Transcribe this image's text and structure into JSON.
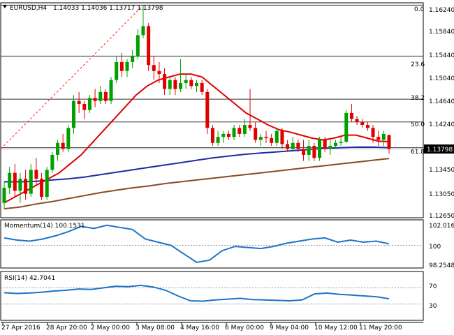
{
  "header": {
    "dropdown_icon": "triangle-down-icon",
    "symbol_timeframe": "EURUSD,H4",
    "ohlc": "1.14033 1.14036 1.13717 1.13798"
  },
  "colors": {
    "bull": "#00a000",
    "bear": "#e00000",
    "sma_fast": "#e00000",
    "sma_mid": "#1f2aa8",
    "sma_slow": "#8b4a24",
    "fib_level": "#333333",
    "fib_trend": "#ff2020",
    "indicator_line": "#1e73c8",
    "price_tag_bg": "#000000"
  },
  "fib_labels": [
    "0.0",
    "23.6",
    "38.2",
    "50.0",
    "61.8"
  ],
  "main_axis": {
    "ticks": [
      "1.16240",
      "1.15840",
      "1.15440",
      "1.15040",
      "1.14640",
      "1.14240",
      "1.13840",
      "1.13450",
      "1.13050",
      "1.12650"
    ],
    "current_price": "1.13798"
  },
  "momentum": {
    "title": "Momentum(14) 100.1531",
    "ticks": [
      "102.0164",
      "100",
      "98.2548"
    ]
  },
  "rsi": {
    "title": "RSI(14) 42.7041",
    "ticks": [
      "70",
      "30"
    ]
  },
  "time_axis": [
    "27 Apr 2016",
    "28 Apr 20:00",
    "2 May 00:00",
    "3 May 08:00",
    "4 May 16:00",
    "6 May 00:00",
    "9 May 04:00",
    "10 May 12:00",
    "11 May 20:00"
  ],
  "chart_data": {
    "type": "candlestick",
    "title": "EURUSD,H4",
    "ylim": [
      1.1265,
      1.1624
    ],
    "candles": [
      [
        1.129,
        1.1325,
        1.128,
        1.1315
      ],
      [
        1.1315,
        1.135,
        1.1305,
        1.134
      ],
      [
        1.134,
        1.1355,
        1.13,
        1.131
      ],
      [
        1.131,
        1.134,
        1.129,
        1.133
      ],
      [
        1.133,
        1.1345,
        1.1295,
        1.1305
      ],
      [
        1.1305,
        1.1355,
        1.13,
        1.1345
      ],
      [
        1.1345,
        1.1365,
        1.132,
        1.133
      ],
      [
        1.133,
        1.134,
        1.1295,
        1.13
      ],
      [
        1.13,
        1.135,
        1.1295,
        1.1345
      ],
      [
        1.1345,
        1.1375,
        1.134,
        1.137
      ],
      [
        1.137,
        1.1395,
        1.136,
        1.139
      ],
      [
        1.139,
        1.1405,
        1.1375,
        1.138
      ],
      [
        1.138,
        1.142,
        1.1375,
        1.1415
      ],
      [
        1.1415,
        1.147,
        1.1405,
        1.146
      ],
      [
        1.146,
        1.1475,
        1.144,
        1.1455
      ],
      [
        1.1455,
        1.146,
        1.143,
        1.1445
      ],
      [
        1.1445,
        1.147,
        1.144,
        1.1465
      ],
      [
        1.1465,
        1.148,
        1.145,
        1.146
      ],
      [
        1.146,
        1.1485,
        1.1455,
        1.1475
      ],
      [
        1.1475,
        1.148,
        1.1455,
        1.146
      ],
      [
        1.146,
        1.15,
        1.1455,
        1.1495
      ],
      [
        1.1495,
        1.1535,
        1.149,
        1.1525
      ],
      [
        1.1525,
        1.154,
        1.15,
        1.151
      ],
      [
        1.151,
        1.153,
        1.15,
        1.1525
      ],
      [
        1.1525,
        1.1545,
        1.1515,
        1.1535
      ],
      [
        1.1535,
        1.158,
        1.153,
        1.157
      ],
      [
        1.157,
        1.162,
        1.1565,
        1.1585
      ],
      [
        1.1585,
        1.159,
        1.151,
        1.152
      ],
      [
        1.152,
        1.1535,
        1.1495,
        1.151
      ],
      [
        1.151,
        1.1525,
        1.149,
        1.1505
      ],
      [
        1.1505,
        1.1515,
        1.147,
        1.148
      ],
      [
        1.148,
        1.15,
        1.147,
        1.1495
      ],
      [
        1.1495,
        1.15,
        1.147,
        1.148
      ],
      [
        1.148,
        1.153,
        1.1475,
        1.149
      ],
      [
        1.149,
        1.1505,
        1.148,
        1.1495
      ],
      [
        1.1495,
        1.15,
        1.148,
        1.1485
      ],
      [
        1.1485,
        1.1495,
        1.1475,
        1.149
      ],
      [
        1.149,
        1.1495,
        1.147,
        1.1475
      ],
      [
        1.1475,
        1.148,
        1.1405,
        1.1415
      ],
      [
        1.1415,
        1.142,
        1.1385,
        1.139
      ],
      [
        1.139,
        1.141,
        1.1385,
        1.14
      ],
      [
        1.14,
        1.141,
        1.139,
        1.1405
      ],
      [
        1.1405,
        1.141,
        1.1395,
        1.14
      ],
      [
        1.14,
        1.142,
        1.1395,
        1.1415
      ],
      [
        1.1415,
        1.142,
        1.14,
        1.1405
      ],
      [
        1.1405,
        1.143,
        1.14,
        1.142
      ],
      [
        1.142,
        1.148,
        1.141,
        1.1415
      ],
      [
        1.1415,
        1.1425,
        1.139,
        1.1395
      ],
      [
        1.1395,
        1.1405,
        1.1385,
        1.14
      ],
      [
        1.14,
        1.141,
        1.139,
        1.1398
      ],
      [
        1.1398,
        1.1405,
        1.1385,
        1.139
      ],
      [
        1.139,
        1.1415,
        1.1385,
        1.141
      ],
      [
        1.141,
        1.1415,
        1.138,
        1.1388
      ],
      [
        1.1388,
        1.1395,
        1.1375,
        1.138
      ],
      [
        1.138,
        1.14,
        1.1375,
        1.139
      ],
      [
        1.139,
        1.1395,
        1.1375,
        1.138
      ],
      [
        1.138,
        1.1395,
        1.136,
        1.137
      ],
      [
        1.137,
        1.1395,
        1.136,
        1.1385
      ],
      [
        1.1385,
        1.139,
        1.136,
        1.1365
      ],
      [
        1.1365,
        1.14,
        1.136,
        1.1395
      ],
      [
        1.1395,
        1.14,
        1.1375,
        1.138
      ],
      [
        1.138,
        1.1395,
        1.137,
        1.1385
      ],
      [
        1.1385,
        1.1395,
        1.138,
        1.139
      ],
      [
        1.139,
        1.14,
        1.1385,
        1.1392
      ],
      [
        1.1392,
        1.1445,
        1.139,
        1.144
      ],
      [
        1.144,
        1.1455,
        1.1425,
        1.143
      ],
      [
        1.143,
        1.1435,
        1.142,
        1.1425
      ],
      [
        1.1425,
        1.143,
        1.1415,
        1.142
      ],
      [
        1.142,
        1.1425,
        1.141,
        1.1415
      ],
      [
        1.1415,
        1.142,
        1.139,
        1.14
      ],
      [
        1.14,
        1.141,
        1.1385,
        1.1395
      ],
      [
        1.1395,
        1.141,
        1.1385,
        1.1405
      ],
      [
        1.1403,
        1.1404,
        1.1372,
        1.138
      ]
    ],
    "sma_fast": [
      1.129,
      1.13,
      1.131,
      1.132,
      1.133,
      1.134,
      1.1355,
      1.137,
      1.139,
      1.141,
      1.143,
      1.145,
      1.147,
      1.1485,
      1.1495,
      1.15,
      1.1505,
      1.1505,
      1.15,
      1.1485,
      1.147,
      1.1455,
      1.144,
      1.143,
      1.142,
      1.1412,
      1.1408,
      1.1403,
      1.1398,
      1.1395,
      1.1398,
      1.1403,
      1.1403,
      1.1398,
      1.1393,
      1.1392
    ],
    "sma_mid": [
      1.1325,
      1.1325,
      1.1326,
      1.1328,
      1.133,
      1.1333,
      1.1337,
      1.1341,
      1.1345,
      1.1349,
      1.1353,
      1.1357,
      1.1361,
      1.1365,
      1.1368,
      1.1371,
      1.1373,
      1.1375,
      1.1377,
      1.1379,
      1.1381,
      1.1382,
      1.1383,
      1.1383,
      1.1382
    ],
    "sma_slow": [
      1.128,
      1.1283,
      1.1288,
      1.1292,
      1.1297,
      1.1302,
      1.1307,
      1.1311,
      1.1315,
      1.1318,
      1.1322,
      1.1325,
      1.1328,
      1.1331,
      1.1334,
      1.1337,
      1.134,
      1.1343,
      1.1346,
      1.1349,
      1.1352,
      1.1355,
      1.1358,
      1.1361,
      1.1364
    ],
    "fib_levels": [
      {
        "label": "0.0",
        "price": 1.162
      },
      {
        "label": "23.6",
        "price": 1.1535
      },
      {
        "label": "38.2",
        "price": 1.1463
      },
      {
        "label": "50.0",
        "price": 1.1425
      },
      {
        "label": "61.8",
        "price": 1.1382
      }
    ],
    "momentum": {
      "ylim": [
        98.2548,
        102.0164
      ],
      "values": [
        100.7,
        100.5,
        100.4,
        100.6,
        100.9,
        101.3,
        101.8,
        101.6,
        101.9,
        101.7,
        101.5,
        100.6,
        100.3,
        100.0,
        99.2,
        98.4,
        98.6,
        99.5,
        99.9,
        99.8,
        99.7,
        99.9,
        100.2,
        100.4,
        100.6,
        100.7,
        100.3,
        100.5,
        100.3,
        100.4,
        100.15
      ]
    },
    "rsi": {
      "ylim": [
        0,
        100
      ],
      "levels": [
        70,
        30
      ],
      "values": [
        58,
        56,
        57,
        59,
        62,
        64,
        67,
        66,
        70,
        74,
        73,
        76,
        72,
        64,
        50,
        38,
        37,
        40,
        42,
        44,
        41,
        40,
        39,
        38,
        40,
        55,
        57,
        54,
        52,
        50,
        48,
        43
      ]
    }
  }
}
